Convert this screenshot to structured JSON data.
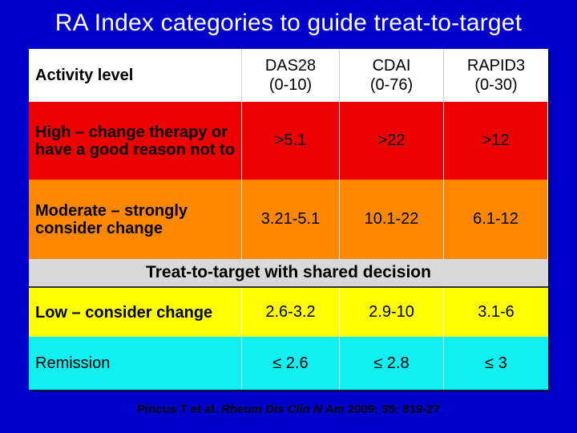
{
  "title": "RA Index categories to guide treat-to-target",
  "table": {
    "headers": [
      "Activity level",
      "DAS28\n(0-10)",
      "CDAI\n(0-76)",
      "RAPID3\n(0-30)"
    ],
    "rows": [
      {
        "label": "High – change therapy or have a good reason not to",
        "das28": ">5.1",
        "cdai": ">22",
        "rapid3": ">12",
        "color": "#ee0000"
      },
      {
        "label": "Moderate – strongly consider change",
        "das28": "3.21-5.1",
        "cdai": "10.1-22",
        "rapid3": "6.1-12",
        "color": "#ff8800"
      },
      {
        "label": "Low – consider change",
        "das28": "2.6-3.2",
        "cdai": "2.9-10",
        "rapid3": "3.1-6",
        "color": "#ffff00"
      },
      {
        "label": "Remission",
        "das28": "≤ 2.6",
        "cdai": "≤ 2.8",
        "rapid3": "≤ 3",
        "color": "#11f0f0"
      }
    ],
    "divider_text": "Treat-to-target with shared decision"
  },
  "citation": {
    "authors": "Pincus T et al.",
    "journal": "Rheum Dis Clin N Am",
    "details": "2009; 35: 819-27"
  },
  "colors": {
    "background": "#0000cc",
    "divider": "#d9d9d9"
  }
}
